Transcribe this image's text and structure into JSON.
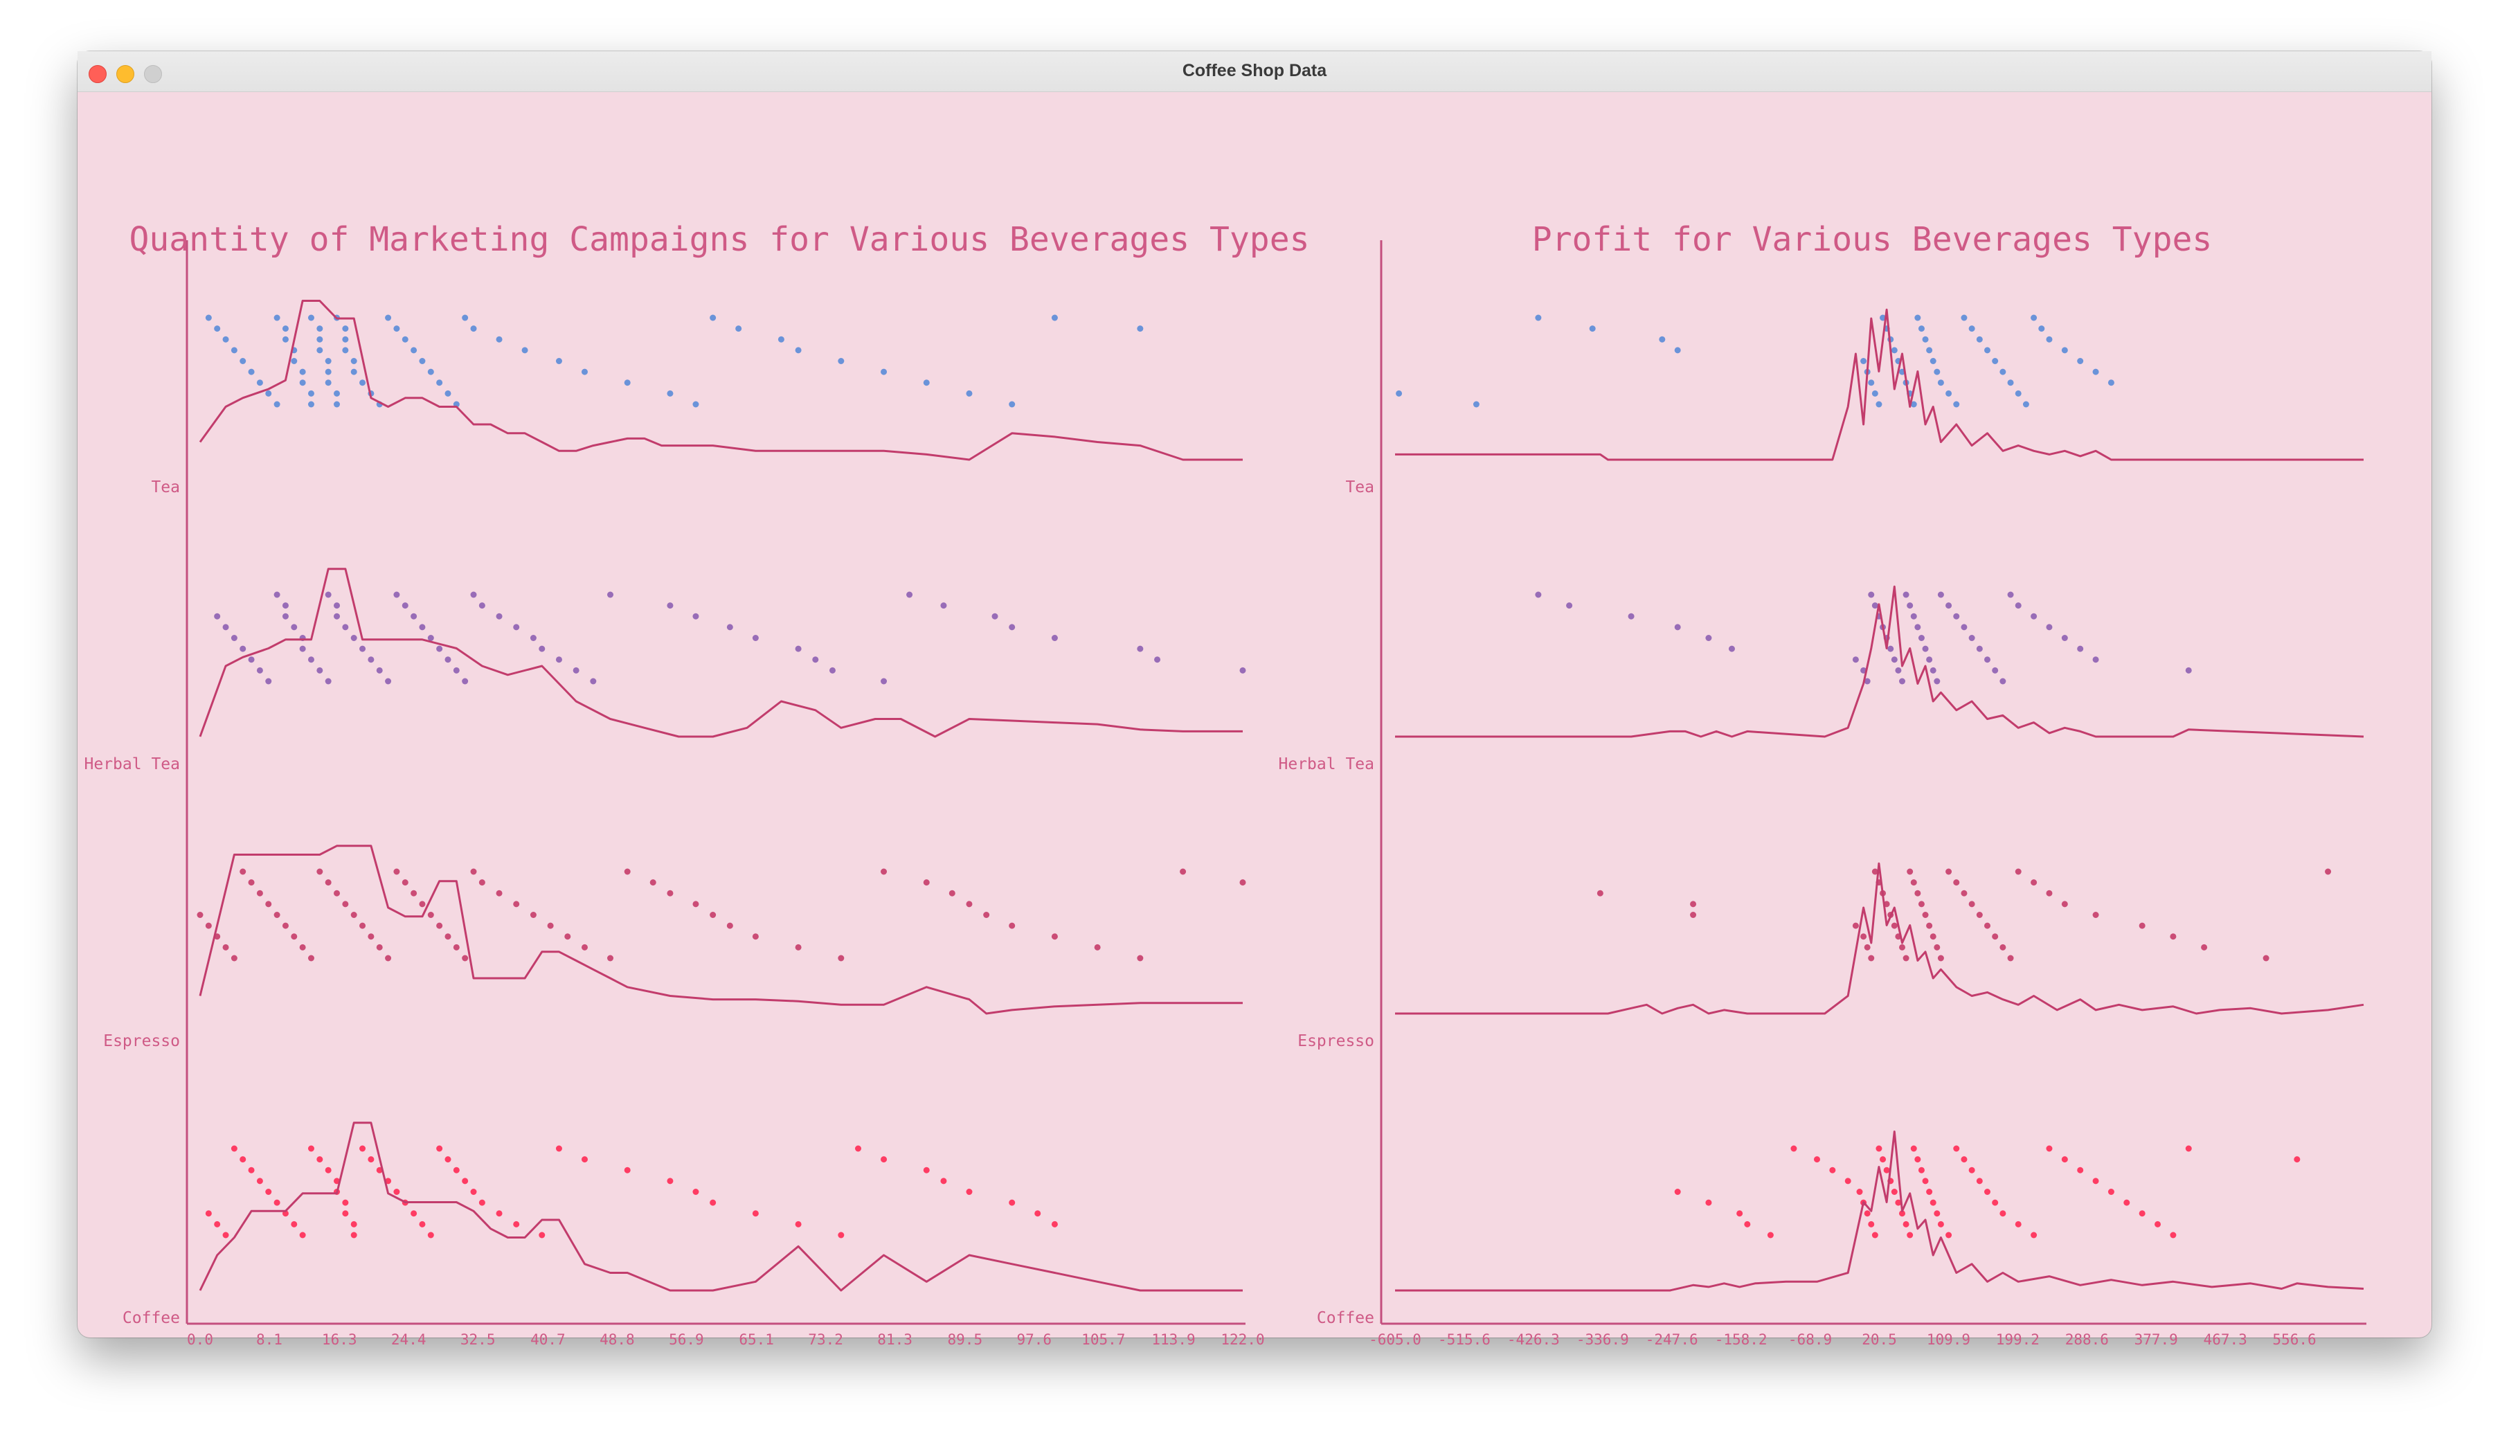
{
  "window": {
    "title": "Coffee Shop Data"
  },
  "colors": {
    "background": "#f5d9e2",
    "axis": "#c44f7e",
    "text": "#cf5a86",
    "line": "#c23c6c",
    "tea": "#5b8bd8",
    "herbal_tea": "#8e5fb2",
    "espresso": "#c63c6a",
    "coffee": "#ff2a55"
  },
  "chart_data": [
    {
      "type": "scatter",
      "title": "Quantity of Marketing Campaigns for Various Beverages Types",
      "categories": [
        "Tea",
        "Herbal Tea",
        "Espresso",
        "Coffee"
      ],
      "xlim": [
        0,
        122
      ],
      "x_ticks": [
        "0.0",
        "8.1",
        "16.3",
        "24.4",
        "32.5",
        "40.7",
        "48.8",
        "56.9",
        "65.1",
        "73.2",
        "81.3",
        "89.5",
        "97.6",
        "105.7",
        "113.9",
        "122.0"
      ],
      "series": [
        {
          "name": "Tea",
          "color": "#5b8bd8",
          "values": [
            1,
            2,
            3,
            4,
            5,
            6,
            7,
            8,
            9,
            9,
            10,
            10,
            11,
            11,
            12,
            12,
            13,
            13,
            13,
            14,
            14,
            14,
            15,
            15,
            15,
            16,
            16,
            16,
            17,
            17,
            17,
            18,
            18,
            19,
            20,
            21,
            22,
            23,
            24,
            25,
            26,
            27,
            28,
            29,
            30,
            31,
            32,
            35,
            38,
            42,
            45,
            50,
            55,
            58,
            60,
            63,
            68,
            70,
            75,
            80,
            85,
            90,
            95,
            100,
            110
          ],
          "density_x": [
            0,
            3,
            5,
            8,
            10,
            12,
            14,
            16,
            18,
            20,
            22,
            24,
            26,
            28,
            30,
            32,
            34,
            36,
            38,
            40,
            42,
            44,
            46,
            48,
            50,
            52,
            54,
            56,
            58,
            60,
            65,
            70,
            75,
            80,
            85,
            90,
            95,
            100,
            105,
            110,
            115,
            122
          ],
          "density_y": [
            0.1,
            0.3,
            0.35,
            0.4,
            0.45,
            0.9,
            0.9,
            0.8,
            0.8,
            0.35,
            0.3,
            0.35,
            0.35,
            0.3,
            0.3,
            0.2,
            0.2,
            0.15,
            0.15,
            0.1,
            0.05,
            0.05,
            0.08,
            0.1,
            0.12,
            0.12,
            0.08,
            0.08,
            0.08,
            0.08,
            0.05,
            0.05,
            0.05,
            0.05,
            0.03,
            0.0,
            0.15,
            0.13,
            0.1,
            0.08,
            0.0,
            0.0
          ]
        },
        {
          "name": "Herbal Tea",
          "color": "#8e5fb2",
          "values": [
            2,
            3,
            4,
            5,
            6,
            7,
            8,
            9,
            10,
            10,
            11,
            12,
            12,
            13,
            14,
            15,
            15,
            16,
            16,
            17,
            18,
            19,
            20,
            21,
            22,
            23,
            24,
            25,
            26,
            27,
            28,
            29,
            30,
            31,
            32,
            33,
            35,
            37,
            39,
            40,
            42,
            44,
            46,
            48,
            55,
            58,
            62,
            65,
            70,
            72,
            74,
            80,
            83,
            87,
            93,
            95,
            100,
            110,
            112,
            122
          ],
          "density_x": [
            0,
            3,
            5,
            8,
            10,
            13,
            15,
            17,
            19,
            21,
            23,
            26,
            30,
            33,
            36,
            40,
            44,
            48,
            52,
            56,
            60,
            64,
            68,
            72,
            75,
            79,
            82,
            86,
            90,
            95,
            100,
            105,
            110,
            115,
            122
          ],
          "density_y": [
            0.0,
            0.4,
            0.45,
            0.5,
            0.55,
            0.55,
            0.95,
            0.95,
            0.55,
            0.55,
            0.55,
            0.55,
            0.5,
            0.4,
            0.35,
            0.4,
            0.2,
            0.1,
            0.05,
            0.0,
            0.0,
            0.05,
            0.2,
            0.15,
            0.05,
            0.1,
            0.1,
            0.0,
            0.1,
            0.09,
            0.08,
            0.07,
            0.04,
            0.03,
            0.03
          ]
        },
        {
          "name": "Espresso",
          "color": "#c63c6a",
          "values": [
            0,
            1,
            2,
            3,
            4,
            5,
            6,
            7,
            8,
            9,
            10,
            11,
            12,
            13,
            14,
            15,
            16,
            17,
            18,
            19,
            20,
            21,
            22,
            23,
            24,
            25,
            26,
            27,
            28,
            29,
            30,
            31,
            32,
            33,
            35,
            37,
            39,
            41,
            43,
            45,
            48,
            50,
            53,
            55,
            58,
            60,
            62,
            65,
            70,
            75,
            80,
            85,
            88,
            90,
            92,
            95,
            100,
            105,
            110,
            115,
            122
          ],
          "density_x": [
            0,
            2,
            4,
            6,
            8,
            10,
            12,
            14,
            16,
            18,
            20,
            22,
            24,
            26,
            28,
            30,
            32,
            34,
            36,
            38,
            40,
            42,
            44,
            46,
            48,
            50,
            55,
            60,
            65,
            70,
            75,
            80,
            85,
            90,
            92,
            95,
            100,
            105,
            110,
            115,
            122
          ],
          "density_y": [
            0.1,
            0.5,
            0.9,
            0.9,
            0.9,
            0.9,
            0.9,
            0.9,
            0.95,
            0.95,
            0.95,
            0.6,
            0.55,
            0.55,
            0.75,
            0.75,
            0.2,
            0.2,
            0.2,
            0.2,
            0.35,
            0.35,
            0.3,
            0.25,
            0.2,
            0.15,
            0.1,
            0.08,
            0.08,
            0.07,
            0.05,
            0.05,
            0.15,
            0.08,
            0.0,
            0.02,
            0.04,
            0.05,
            0.06,
            0.06,
            0.06
          ]
        },
        {
          "name": "Coffee",
          "color": "#ff2a55",
          "values": [
            1,
            2,
            3,
            4,
            5,
            6,
            7,
            8,
            9,
            10,
            11,
            12,
            13,
            14,
            15,
            16,
            16,
            17,
            17,
            18,
            18,
            19,
            20,
            21,
            22,
            23,
            24,
            25,
            26,
            27,
            28,
            29,
            30,
            31,
            32,
            33,
            35,
            37,
            40,
            42,
            45,
            50,
            55,
            58,
            60,
            65,
            70,
            75,
            77,
            80,
            85,
            87,
            90,
            95,
            98,
            100
          ],
          "density_x": [
            0,
            2,
            4,
            6,
            8,
            10,
            12,
            14,
            16,
            18,
            20,
            22,
            24,
            26,
            28,
            30,
            32,
            34,
            36,
            38,
            40,
            42,
            45,
            48,
            50,
            55,
            60,
            65,
            70,
            75,
            80,
            85,
            90,
            95,
            100,
            105,
            110,
            115,
            122
          ],
          "density_y": [
            0.0,
            0.2,
            0.3,
            0.45,
            0.45,
            0.45,
            0.55,
            0.55,
            0.55,
            0.95,
            0.95,
            0.55,
            0.5,
            0.5,
            0.5,
            0.5,
            0.45,
            0.35,
            0.3,
            0.3,
            0.4,
            0.4,
            0.15,
            0.1,
            0.1,
            0.0,
            0.0,
            0.05,
            0.25,
            0.0,
            0.2,
            0.05,
            0.2,
            0.15,
            0.1,
            0.05,
            0.0,
            0.0,
            0.0
          ]
        }
      ]
    },
    {
      "type": "scatter",
      "title": "Profit for Various Beverages Types",
      "categories": [
        "Tea",
        "Herbal Tea",
        "Espresso",
        "Coffee"
      ],
      "xlim": [
        -605,
        646
      ],
      "x_ticks": [
        "-605.0",
        "-515.6",
        "-426.3",
        "-336.9",
        "-247.6",
        "-158.2",
        "-68.9",
        "20.5",
        "109.9",
        "199.2",
        "288.6",
        "377.9",
        "467.3",
        "556.6"
      ],
      "series": [
        {
          "name": "Tea",
          "color": "#5b8bd8",
          "values": [
            -600,
            -500,
            -420,
            -350,
            -260,
            -240,
            0,
            5,
            10,
            15,
            20,
            25,
            30,
            35,
            40,
            45,
            50,
            55,
            60,
            65,
            70,
            75,
            80,
            85,
            90,
            95,
            100,
            110,
            120,
            130,
            140,
            150,
            160,
            170,
            180,
            190,
            200,
            210,
            220,
            230,
            240,
            260,
            280,
            300,
            320
          ],
          "density_x": [
            -605,
            -340,
            -330,
            -40,
            -20,
            -10,
            0,
            10,
            20,
            30,
            40,
            50,
            60,
            70,
            80,
            90,
            100,
            120,
            140,
            160,
            180,
            200,
            220,
            240,
            260,
            280,
            300,
            320,
            340,
            646
          ],
          "density_y": [
            0.03,
            0.03,
            0.0,
            0.0,
            0.3,
            0.6,
            0.2,
            0.8,
            0.5,
            0.85,
            0.4,
            0.6,
            0.3,
            0.5,
            0.2,
            0.3,
            0.1,
            0.2,
            0.08,
            0.15,
            0.05,
            0.08,
            0.05,
            0.03,
            0.05,
            0.02,
            0.05,
            0.0,
            0.0,
            0.0
          ]
        },
        {
          "name": "Herbal Tea",
          "color": "#8e5fb2",
          "values": [
            -420,
            -380,
            -300,
            -240,
            -200,
            -170,
            -10,
            0,
            5,
            10,
            15,
            20,
            25,
            30,
            35,
            40,
            45,
            50,
            55,
            60,
            65,
            70,
            75,
            80,
            85,
            90,
            95,
            100,
            110,
            120,
            130,
            140,
            150,
            160,
            170,
            180,
            190,
            200,
            220,
            240,
            260,
            280,
            300,
            420
          ],
          "density_x": [
            -605,
            -300,
            -250,
            -230,
            -210,
            -190,
            -170,
            -150,
            -50,
            -20,
            0,
            10,
            20,
            30,
            40,
            50,
            60,
            70,
            80,
            90,
            100,
            120,
            140,
            160,
            180,
            200,
            220,
            240,
            260,
            280,
            300,
            400,
            420,
            646
          ],
          "density_y": [
            0.0,
            0.0,
            0.03,
            0.03,
            0.0,
            0.03,
            0.0,
            0.03,
            0.0,
            0.05,
            0.3,
            0.5,
            0.75,
            0.5,
            0.85,
            0.4,
            0.5,
            0.3,
            0.4,
            0.2,
            0.25,
            0.15,
            0.2,
            0.1,
            0.12,
            0.05,
            0.08,
            0.02,
            0.05,
            0.03,
            0.0,
            0.0,
            0.04,
            0.0
          ]
        },
        {
          "name": "Espresso",
          "color": "#c63c6a",
          "values": [
            -340,
            -220,
            -220,
            -10,
            0,
            5,
            10,
            15,
            20,
            25,
            30,
            35,
            40,
            45,
            50,
            55,
            60,
            65,
            70,
            75,
            80,
            85,
            90,
            95,
            100,
            110,
            120,
            130,
            140,
            150,
            160,
            170,
            180,
            190,
            200,
            220,
            240,
            260,
            300,
            360,
            400,
            440,
            520,
            600
          ],
          "density_x": [
            -605,
            -330,
            -300,
            -280,
            -260,
            -240,
            -220,
            -200,
            -180,
            -150,
            -50,
            -20,
            0,
            10,
            20,
            30,
            40,
            50,
            60,
            70,
            80,
            90,
            100,
            120,
            140,
            160,
            180,
            200,
            220,
            250,
            280,
            300,
            330,
            360,
            400,
            430,
            460,
            500,
            540,
            600,
            646
          ],
          "density_y": [
            0.0,
            0.0,
            0.03,
            0.05,
            0.0,
            0.03,
            0.05,
            0.0,
            0.02,
            0.0,
            0.0,
            0.1,
            0.6,
            0.4,
            0.85,
            0.5,
            0.6,
            0.4,
            0.5,
            0.3,
            0.35,
            0.2,
            0.25,
            0.15,
            0.1,
            0.12,
            0.08,
            0.05,
            0.1,
            0.02,
            0.08,
            0.02,
            0.05,
            0.02,
            0.04,
            0.0,
            0.02,
            0.03,
            0.0,
            0.02,
            0.05
          ]
        },
        {
          "name": "Coffee",
          "color": "#ff2a55",
          "values": [
            -240,
            -200,
            -160,
            -150,
            -120,
            -90,
            -60,
            -40,
            -20,
            -5,
            0,
            5,
            10,
            15,
            20,
            25,
            30,
            35,
            40,
            45,
            50,
            55,
            60,
            65,
            70,
            75,
            80,
            85,
            90,
            95,
            100,
            110,
            120,
            130,
            140,
            150,
            160,
            170,
            180,
            200,
            220,
            240,
            260,
            280,
            300,
            320,
            340,
            360,
            380,
            400,
            420,
            560
          ],
          "density_x": [
            -605,
            -250,
            -220,
            -200,
            -180,
            -160,
            -140,
            -100,
            -60,
            -20,
            0,
            10,
            20,
            30,
            40,
            50,
            60,
            70,
            80,
            90,
            100,
            120,
            140,
            160,
            180,
            200,
            240,
            280,
            320,
            360,
            400,
            450,
            500,
            540,
            560,
            600,
            646
          ],
          "density_y": [
            0.0,
            0.0,
            0.03,
            0.02,
            0.04,
            0.02,
            0.04,
            0.05,
            0.05,
            0.1,
            0.5,
            0.45,
            0.7,
            0.5,
            0.9,
            0.45,
            0.55,
            0.35,
            0.4,
            0.2,
            0.3,
            0.1,
            0.15,
            0.05,
            0.1,
            0.05,
            0.08,
            0.03,
            0.06,
            0.03,
            0.05,
            0.02,
            0.04,
            0.01,
            0.04,
            0.02,
            0.01
          ]
        }
      ]
    }
  ]
}
